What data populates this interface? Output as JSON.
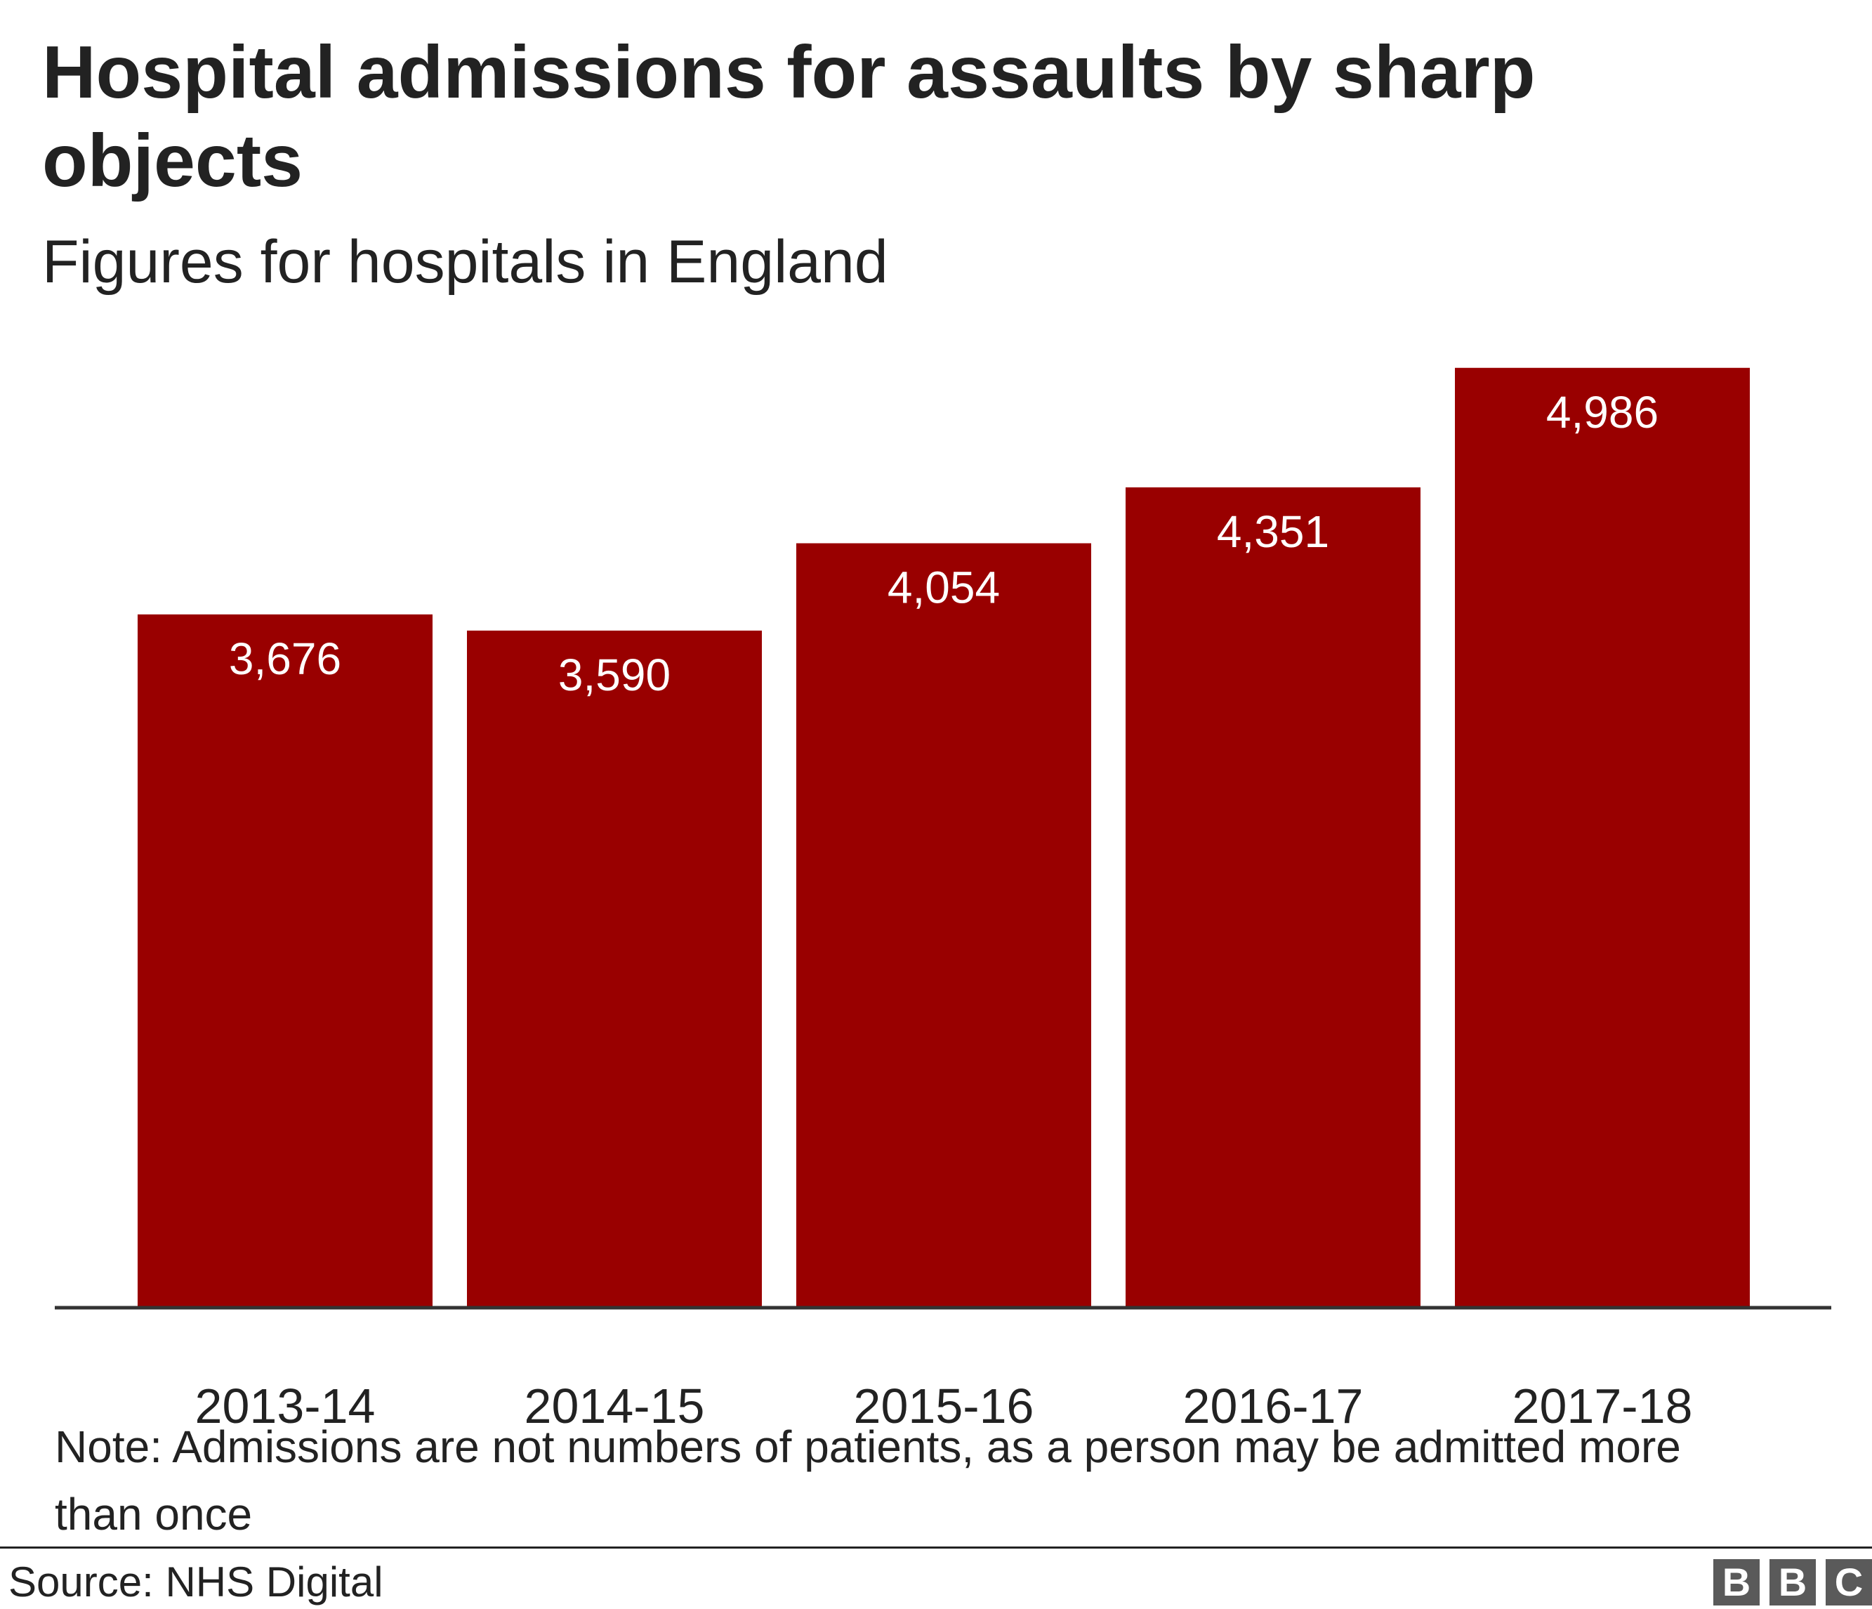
{
  "header": {
    "title": "Hospital admissions for assaults by sharp objects",
    "subtitle": "Figures for hospitals in England"
  },
  "chart_data": {
    "type": "bar",
    "title": "Hospital admissions for assaults by sharp objects",
    "subtitle": "Figures for hospitals in England",
    "categories": [
      "2013-14",
      "2014-15",
      "2015-16",
      "2016-17",
      "2017-18"
    ],
    "values": [
      3676,
      3590,
      4054,
      4351,
      4986
    ],
    "data_labels": [
      "3,676",
      "3,590",
      "4,054",
      "4,351",
      "4,986"
    ],
    "xlabel": "",
    "ylabel": "",
    "ylim": [
      0,
      5000
    ],
    "grid": false,
    "legend": "none",
    "bar_color": "#990000",
    "label_color": "#ffffff"
  },
  "footer": {
    "note": "Note: Admissions are not numbers of patients, as a person may be admitted more than once",
    "source": "Source: NHS Digital",
    "logo_letters": [
      "B",
      "B",
      "C"
    ]
  }
}
